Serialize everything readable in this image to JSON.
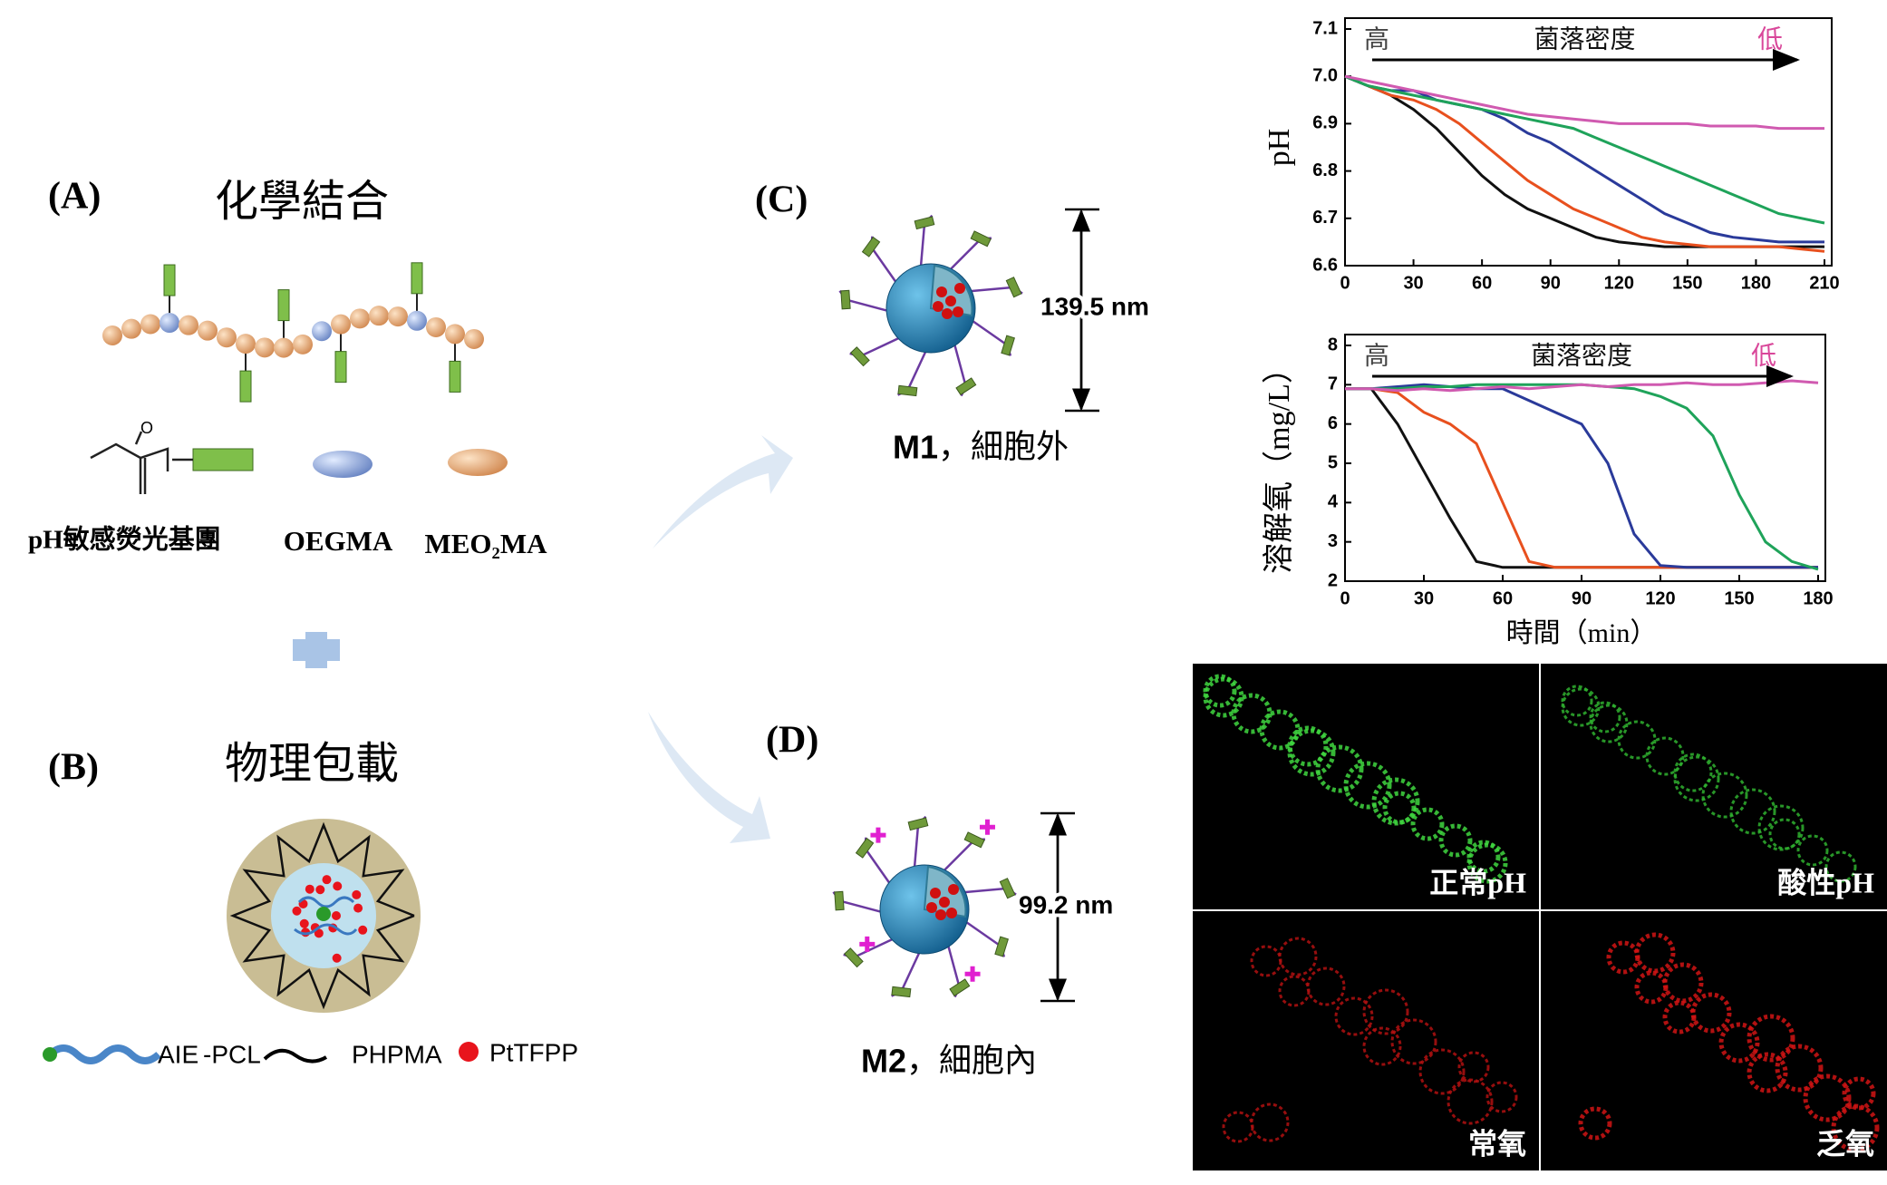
{
  "panels": {
    "A": {
      "label": "(A)",
      "title": "化學結合",
      "components": [
        "pH敏感熒光基團",
        "OEGMA",
        "MEO₂MA"
      ]
    },
    "B": {
      "label": "(B)",
      "title": "物理包載",
      "legend": [
        {
          "text": "AIE",
          "color": "#1f9a1f"
        },
        {
          "text": "-PCL",
          "color": "#1f3fb0"
        },
        {
          "text": "PHPMA",
          "color": "#111111"
        },
        {
          "text": "PtTFPP",
          "color": "#e8141c"
        }
      ]
    },
    "C": {
      "label": "(C)",
      "size": "139.5 nm",
      "caption": [
        "M1",
        "，細胞外"
      ]
    },
    "D": {
      "label": "(D)",
      "size": "99.2 nm",
      "caption": [
        "M2",
        "，細胞內"
      ]
    },
    "images": [
      "正常pH",
      "酸性pH",
      "常氧",
      "乏氧"
    ]
  },
  "chart_data": [
    {
      "type": "line",
      "ylabel": "pH",
      "annotations": [
        {
          "text": "高",
          "color": "#444444"
        },
        {
          "text": "菌落密度",
          "color": "#111111"
        },
        {
          "text": "低",
          "color": "#d9479a"
        }
      ],
      "x": [
        0,
        10,
        20,
        30,
        40,
        50,
        60,
        70,
        80,
        90,
        100,
        110,
        120,
        130,
        140,
        150,
        160,
        170,
        180,
        190,
        200,
        210
      ],
      "xlim": [
        0,
        210
      ],
      "xticks": [
        0,
        30,
        60,
        90,
        120,
        150,
        180,
        210
      ],
      "ylim": [
        6.6,
        7.1
      ],
      "yticks": [
        6.6,
        6.7,
        6.8,
        6.9,
        {
          "value": 7,
          "label": "7.0"
        },
        7.1
      ],
      "series": [
        {
          "color": "#111111",
          "values": [
            7.0,
            6.98,
            6.96,
            6.93,
            6.89,
            6.84,
            6.79,
            6.75,
            6.72,
            6.7,
            6.68,
            6.66,
            6.65,
            6.645,
            6.64,
            6.64,
            6.64,
            6.64,
            6.64,
            6.64,
            6.64,
            6.64
          ]
        },
        {
          "color": "#e8501e",
          "values": [
            7.0,
            6.98,
            6.96,
            6.95,
            6.93,
            6.9,
            6.86,
            6.82,
            6.78,
            6.75,
            6.72,
            6.7,
            6.68,
            6.66,
            6.65,
            6.645,
            6.64,
            6.64,
            6.64,
            6.64,
            6.635,
            6.63
          ]
        },
        {
          "color": "#2a3a9a",
          "values": [
            7.0,
            6.98,
            6.97,
            6.97,
            6.95,
            6.94,
            6.93,
            6.91,
            6.88,
            6.86,
            6.83,
            6.8,
            6.77,
            6.74,
            6.71,
            6.69,
            6.67,
            6.66,
            6.655,
            6.65,
            6.65,
            6.65
          ]
        },
        {
          "color": "#1fa35a",
          "values": [
            7.0,
            6.98,
            6.97,
            6.96,
            6.95,
            6.94,
            6.93,
            6.92,
            6.91,
            6.9,
            6.89,
            6.87,
            6.85,
            6.83,
            6.81,
            6.79,
            6.77,
            6.75,
            6.73,
            6.71,
            6.7,
            6.69
          ]
        },
        {
          "color": "#d05ab0",
          "values": [
            7.0,
            6.99,
            6.98,
            6.97,
            6.96,
            6.95,
            6.94,
            6.93,
            6.92,
            6.915,
            6.91,
            6.905,
            6.9,
            6.9,
            6.9,
            6.9,
            6.895,
            6.895,
            6.895,
            6.89,
            6.89,
            6.89
          ]
        }
      ]
    },
    {
      "type": "line",
      "ylabel": "溶解氧（mg/L）",
      "xlabel": "時間（min）",
      "annotations": [
        {
          "text": "高",
          "color": "#444444"
        },
        {
          "text": "菌落密度",
          "color": "#111111"
        },
        {
          "text": "低",
          "color": "#d9479a"
        }
      ],
      "x": [
        0,
        10,
        20,
        30,
        40,
        50,
        60,
        70,
        80,
        90,
        100,
        110,
        120,
        130,
        140,
        150,
        160,
        170,
        180
      ],
      "xlim": [
        0,
        180
      ],
      "xticks": [
        0,
        30,
        60,
        90,
        120,
        150,
        180
      ],
      "ylim": [
        2,
        8
      ],
      "yticks": [
        2,
        3,
        4,
        5,
        6,
        7,
        8
      ],
      "series": [
        {
          "color": "#111111",
          "values": [
            6.9,
            6.9,
            6.0,
            4.8,
            3.6,
            2.5,
            2.35,
            2.35,
            2.35,
            2.35,
            2.35,
            2.35,
            2.35,
            2.35,
            2.35,
            2.35,
            2.35,
            2.35,
            2.35
          ]
        },
        {
          "color": "#e8501e",
          "values": [
            6.9,
            6.9,
            6.8,
            6.3,
            6.0,
            5.5,
            4.0,
            2.5,
            2.35,
            2.35,
            2.35,
            2.35,
            2.35,
            2.35,
            2.35,
            2.35,
            2.35,
            2.35,
            2.35
          ]
        },
        {
          "color": "#2a3a9a",
          "values": [
            6.9,
            6.9,
            6.95,
            7.0,
            6.95,
            6.9,
            6.9,
            6.6,
            6.3,
            6.0,
            5.0,
            3.2,
            2.4,
            2.35,
            2.35,
            2.35,
            2.35,
            2.35,
            2.35
          ]
        },
        {
          "color": "#1fa35a",
          "values": [
            6.9,
            6.9,
            6.9,
            6.95,
            6.95,
            7.0,
            7.0,
            7.0,
            7.0,
            7.0,
            6.95,
            6.9,
            6.7,
            6.4,
            5.7,
            4.2,
            3.0,
            2.5,
            2.3
          ]
        },
        {
          "color": "#d05ab0",
          "values": [
            6.9,
            6.9,
            6.85,
            6.9,
            6.85,
            6.9,
            6.95,
            6.9,
            6.95,
            7.0,
            6.95,
            7.0,
            7.0,
            7.05,
            7.0,
            7.0,
            7.05,
            7.1,
            7.05
          ]
        }
      ]
    }
  ]
}
